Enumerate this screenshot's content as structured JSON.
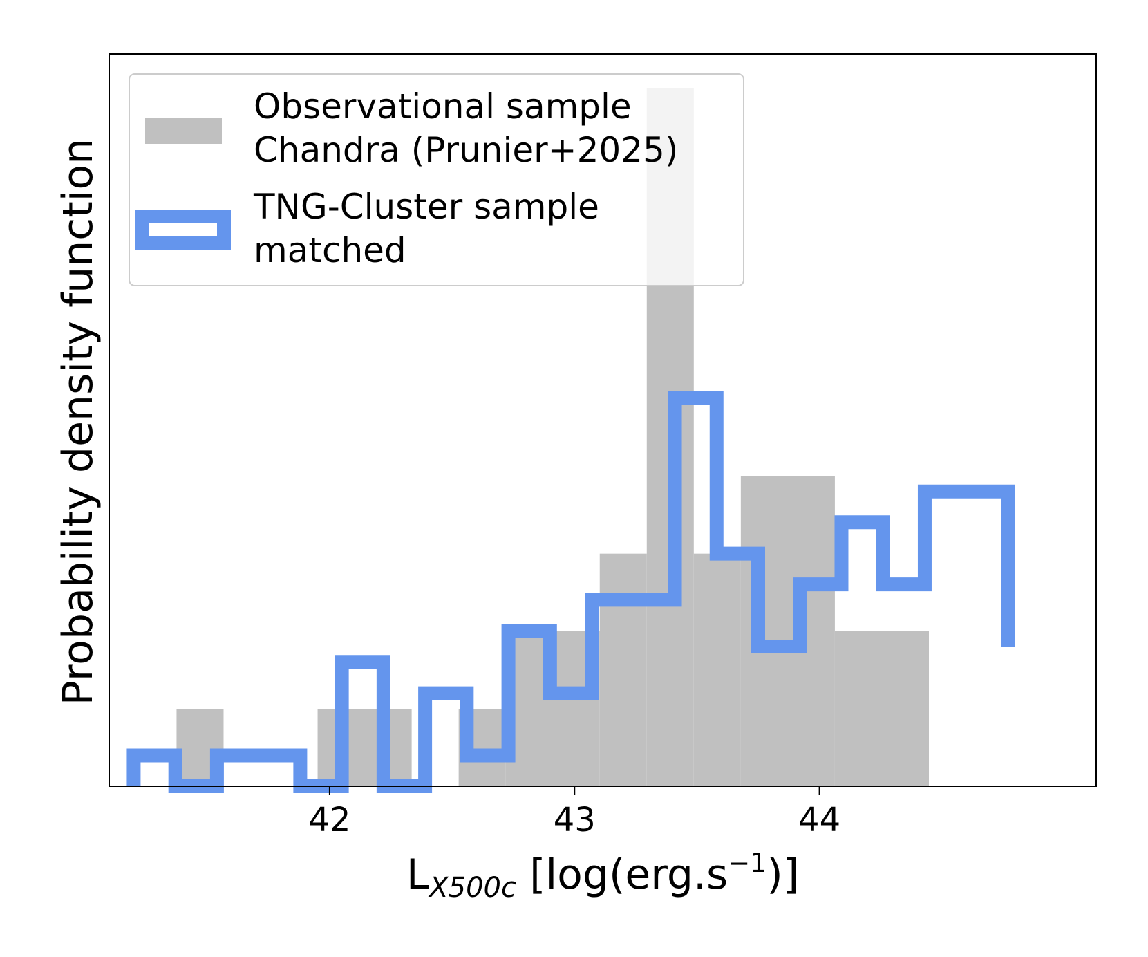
{
  "chart_data": {
    "type": "histogram",
    "xlabel": {
      "main": "L",
      "subscript": "X500c",
      "rest": " [log(erg.s",
      "superscript": "−1",
      "close": ")]"
    },
    "ylabel": "Probability density function",
    "xlim": [
      41.1,
      45.13
    ],
    "ylim": [
      0,
      1.0
    ],
    "xticks": [
      42,
      43,
      44
    ],
    "xtick_labels": [
      "42",
      "43",
      "44"
    ],
    "y_ticks_shown": false,
    "colors": {
      "observational": "#c0c0c0",
      "tng": "#6495ed",
      "legend_border": "#cccccc"
    },
    "series": [
      {
        "name": "Observational sample Chandra (Prunier+2025)",
        "legend_lines": [
          "Observational sample",
          "Chandra (Prunier+2025)"
        ],
        "style": "filled",
        "bins": [
          {
            "x0": 41.375,
            "x1": 41.567,
            "value": 0.11
          },
          {
            "x0": 41.567,
            "x1": 41.951,
            "value": 0.0
          },
          {
            "x0": 41.951,
            "x1": 42.335,
            "value": 0.11
          },
          {
            "x0": 42.335,
            "x1": 42.527,
            "value": 0.0
          },
          {
            "x0": 42.527,
            "x1": 42.719,
            "value": 0.11
          },
          {
            "x0": 42.719,
            "x1": 43.103,
            "value": 0.222
          },
          {
            "x0": 43.103,
            "x1": 43.295,
            "value": 0.333
          },
          {
            "x0": 43.295,
            "x1": 43.487,
            "value": 1.0
          },
          {
            "x0": 43.487,
            "x1": 43.679,
            "value": 0.333
          },
          {
            "x0": 43.679,
            "x1": 44.063,
            "value": 0.444
          },
          {
            "x0": 44.063,
            "x1": 44.447,
            "value": 0.222
          }
        ]
      },
      {
        "name": "TNG-Cluster sample matched",
        "legend_lines": [
          "TNG-Cluster sample",
          "matched"
        ],
        "style": "step",
        "edges": [
          41.2,
          41.37,
          41.54,
          41.71,
          41.88,
          42.05,
          42.22,
          42.39,
          42.56,
          42.73,
          42.9,
          43.07,
          43.24,
          43.41,
          43.58,
          43.75,
          43.92,
          44.09,
          44.26,
          44.43,
          44.6,
          44.77
        ],
        "values": [
          0.044,
          0.0,
          0.044,
          0.044,
          0.0,
          0.178,
          0.0,
          0.133,
          0.044,
          0.222,
          0.133,
          0.267,
          0.267,
          0.556,
          0.333,
          0.2,
          0.289,
          0.378,
          0.289,
          0.422,
          0.422,
          0.2
        ]
      }
    ]
  }
}
